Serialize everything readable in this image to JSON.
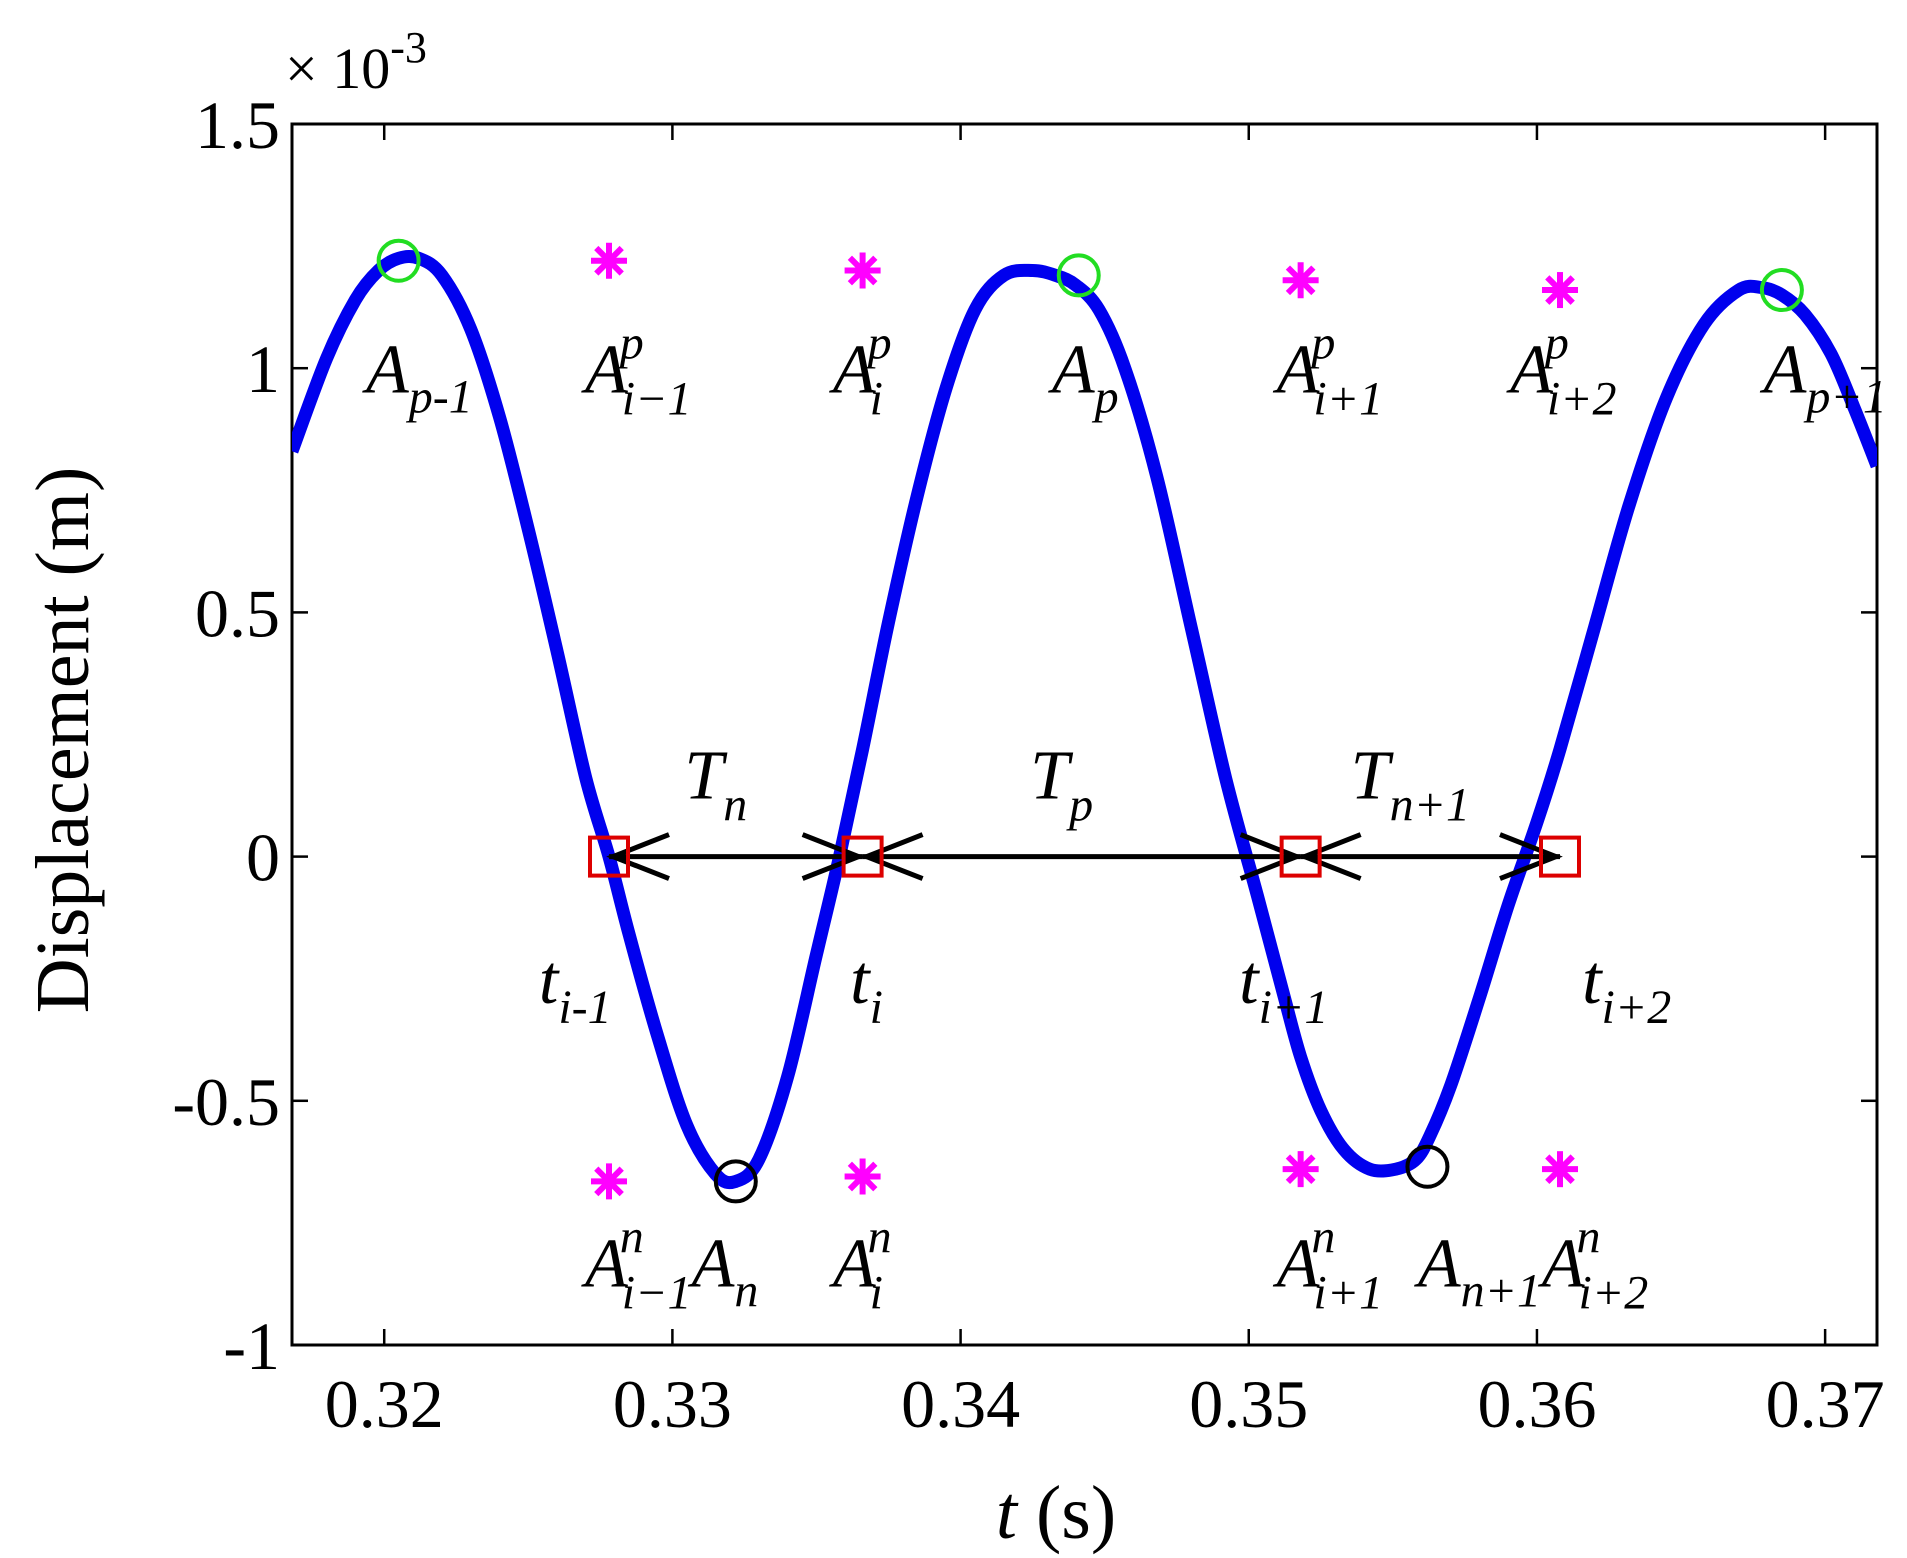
{
  "chart_data": {
    "type": "line",
    "xlabel_var": "t",
    "xlabel_unit": " (s)",
    "ylabel": "Displacement (m)",
    "y_multiplier": "× 10",
    "y_multiplier_exp": "-3",
    "xlim": [
      0.3168,
      0.3718
    ],
    "ylim": [
      -1.0,
      1.5
    ],
    "x_ticks": [
      0.32,
      0.33,
      0.34,
      0.35,
      0.36,
      0.37
    ],
    "x_tick_labels": [
      "0.32",
      "0.33",
      "0.34",
      "0.35",
      "0.36",
      "0.37"
    ],
    "y_ticks": [
      -1.0,
      -0.5,
      0,
      0.5,
      1.0,
      1.5
    ],
    "y_tick_labels": [
      "-1",
      "-0.5",
      "0",
      "0.5",
      "1",
      "1.5"
    ],
    "grid": false,
    "series": [
      {
        "color": "#0000ee",
        "x": [
          0.3168,
          0.318,
          0.319,
          0.3198,
          0.3205,
          0.3212,
          0.322,
          0.323,
          0.324,
          0.325,
          0.326,
          0.327,
          0.3278,
          0.3285,
          0.3295,
          0.3305,
          0.3315,
          0.3322,
          0.333,
          0.334,
          0.335,
          0.3358,
          0.3366,
          0.3375,
          0.3385,
          0.3395,
          0.3405,
          0.3415,
          0.3425,
          0.3433,
          0.344,
          0.3448,
          0.3457,
          0.3468,
          0.348,
          0.3492,
          0.3503,
          0.3512,
          0.3518,
          0.3525,
          0.3533,
          0.3542,
          0.3551,
          0.3558,
          0.3563,
          0.357,
          0.358,
          0.359,
          0.36,
          0.3608,
          0.362,
          0.3632,
          0.3645,
          0.3658,
          0.367,
          0.3678,
          0.3685,
          0.3693,
          0.3702,
          0.371,
          0.3718
        ],
        "y": [
          0.83,
          1.02,
          1.14,
          1.2,
          1.225,
          1.225,
          1.19,
          1.08,
          0.9,
          0.67,
          0.42,
          0.16,
          0.0,
          -0.16,
          -0.37,
          -0.55,
          -0.65,
          -0.665,
          -0.62,
          -0.45,
          -0.2,
          0.0,
          0.22,
          0.48,
          0.74,
          0.96,
          1.12,
          1.19,
          1.2,
          1.19,
          1.17,
          1.12,
          1.0,
          0.78,
          0.47,
          0.16,
          -0.08,
          -0.28,
          -0.41,
          -0.52,
          -0.6,
          -0.64,
          -0.64,
          -0.62,
          -0.57,
          -0.47,
          -0.29,
          -0.1,
          0.07,
          0.22,
          0.47,
          0.72,
          0.94,
          1.09,
          1.16,
          1.165,
          1.15,
          1.11,
          1.03,
          0.92,
          0.8
        ]
      }
    ],
    "markers": {
      "positive_peaks": {
        "color": "#22dd22",
        "shape": "circle",
        "x": [
          0.3205,
          0.3441,
          0.3685
        ],
        "y": [
          1.22,
          1.19,
          1.16
        ]
      },
      "negative_peaks": {
        "color": "#000000",
        "shape": "circle",
        "x": [
          0.3322,
          0.3562
        ],
        "y": [
          -0.665,
          -0.635
        ]
      },
      "zero_crossings": {
        "color": "#dd0000",
        "shape": "square",
        "x": [
          0.3278,
          0.3366,
          0.3518,
          0.3608
        ],
        "y": [
          0,
          0,
          0,
          0
        ]
      },
      "interpolated_pos": {
        "color": "#ff00ff",
        "shape": "asterisk",
        "x": [
          0.3278,
          0.3366,
          0.3518,
          0.3608
        ],
        "y": [
          1.22,
          1.2,
          1.18,
          1.16
        ]
      },
      "interpolated_neg": {
        "color": "#ff00ff",
        "shape": "asterisk",
        "x": [
          0.3278,
          0.3366,
          0.3518,
          0.3608
        ],
        "y": [
          -0.665,
          -0.655,
          -0.64,
          -0.64
        ]
      }
    },
    "periods": [
      {
        "from": 0.3278,
        "to": 0.3366,
        "label": "T",
        "sub": "n"
      },
      {
        "from": 0.3366,
        "to": 0.3518,
        "label": "T",
        "sub": "p"
      },
      {
        "from": 0.3518,
        "to": 0.3608,
        "label": "T",
        "sub": "n+1"
      }
    ],
    "annotations": [
      {
        "main": "A",
        "sub": "p-1",
        "sup": "",
        "x": 0.3202,
        "y": 0.95
      },
      {
        "main": "A",
        "sub": "i−1",
        "sup": "p",
        "x": 0.3278,
        "y": 0.95
      },
      {
        "main": "A",
        "sub": "i",
        "sup": "p",
        "x": 0.3364,
        "y": 0.95
      },
      {
        "main": "A",
        "sub": "p",
        "sup": "",
        "x": 0.344,
        "y": 0.95
      },
      {
        "main": "A",
        "sub": "i+1",
        "sup": "p",
        "x": 0.3518,
        "y": 0.95
      },
      {
        "main": "A",
        "sub": "i+2",
        "sup": "p",
        "x": 0.3599,
        "y": 0.95
      },
      {
        "main": "A",
        "sub": "p+1",
        "sup": "",
        "x": 0.3687,
        "y": 0.95
      },
      {
        "main": "t",
        "sub": "i-1",
        "sup": "",
        "x": 0.3262,
        "y": -0.3
      },
      {
        "main": "t",
        "sub": "i",
        "sup": "",
        "x": 0.337,
        "y": -0.3
      },
      {
        "main": "t",
        "sub": "i+1",
        "sup": "",
        "x": 0.3505,
        "y": -0.3
      },
      {
        "main": "t",
        "sub": "i+2",
        "sup": "",
        "x": 0.3624,
        "y": -0.3
      },
      {
        "main": "A",
        "sub": "i−1",
        "sup": "n",
        "x": 0.3278,
        "y": -0.88
      },
      {
        "main": "A",
        "sub": "n",
        "sup": "",
        "x": 0.3315,
        "y": -0.88
      },
      {
        "main": "A",
        "sub": "i",
        "sup": "n",
        "x": 0.3364,
        "y": -0.88
      },
      {
        "main": "A",
        "sub": "i+1",
        "sup": "n",
        "x": 0.3518,
        "y": -0.88
      },
      {
        "main": "A",
        "sub": "n+1",
        "sup": "",
        "x": 0.3567,
        "y": -0.88
      },
      {
        "main": "A",
        "sub": "i+2",
        "sup": "n",
        "x": 0.361,
        "y": -0.88
      }
    ]
  }
}
